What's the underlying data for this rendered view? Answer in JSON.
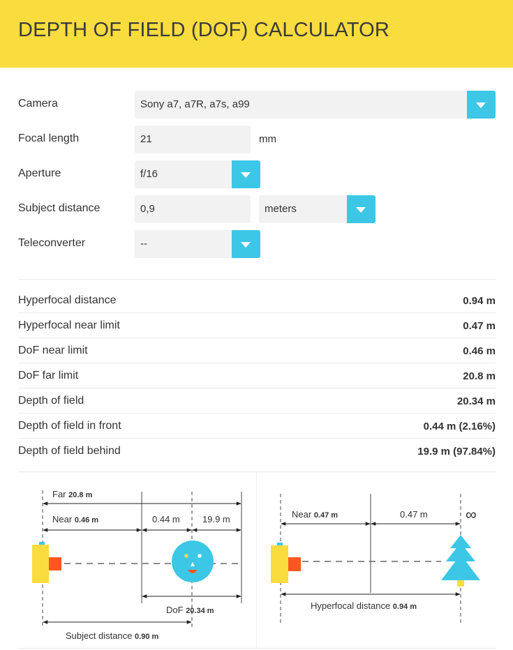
{
  "header": {
    "title": "DEPTH OF FIELD (DOF) CALCULATOR"
  },
  "colors": {
    "header_bg": "#f9dc3e",
    "accent": "#3dc7e6",
    "camera_body": "#f9dc3e",
    "lens": "#ff5722",
    "face": "#3dc7e6",
    "tree": "#3dc7e6"
  },
  "form": {
    "camera": {
      "label": "Camera",
      "value": "Sony a7, a7R, a7s, a99"
    },
    "focal_length": {
      "label": "Focal length",
      "value": "21",
      "unit": "mm"
    },
    "aperture": {
      "label": "Aperture",
      "value": "f/16"
    },
    "subject_distance": {
      "label": "Subject distance",
      "value": "0,9",
      "unit": "meters"
    },
    "teleconverter": {
      "label": "Teleconverter",
      "value": "--"
    }
  },
  "results": [
    {
      "label": "Hyperfocal distance",
      "value": "0.94 m"
    },
    {
      "label": "Hyperfocal near limit",
      "value": "0.47 m"
    },
    {
      "label": "DoF near limit",
      "value": "0.46 m"
    },
    {
      "label": "DoF far limit",
      "value": "20.8 m"
    },
    {
      "label": "Depth of field",
      "value": "20.34 m"
    },
    {
      "label": "Depth of field in front",
      "value": "0.44 m (2.16%)"
    },
    {
      "label": "Depth of field behind",
      "value": "19.9 m (97.84%)"
    }
  ],
  "dof_diagram": {
    "far_label": "Far",
    "far_value": "20.8 m",
    "near_label": "Near",
    "near_value": "0.46 m",
    "front_value": "0.44 m",
    "behind_value": "19.9 m",
    "dof_label": "DoF",
    "dof_value": "20.34 m",
    "subject_label": "Subject distance",
    "subject_value": "0.90 m"
  },
  "hyperfocal_diagram": {
    "near_label": "Near",
    "near_value": "0.47 m",
    "half_value": "0.47 m",
    "infinity_symbol": "∞",
    "hyper_label": "Hyperfocal distance",
    "hyper_value": "0.94 m"
  }
}
